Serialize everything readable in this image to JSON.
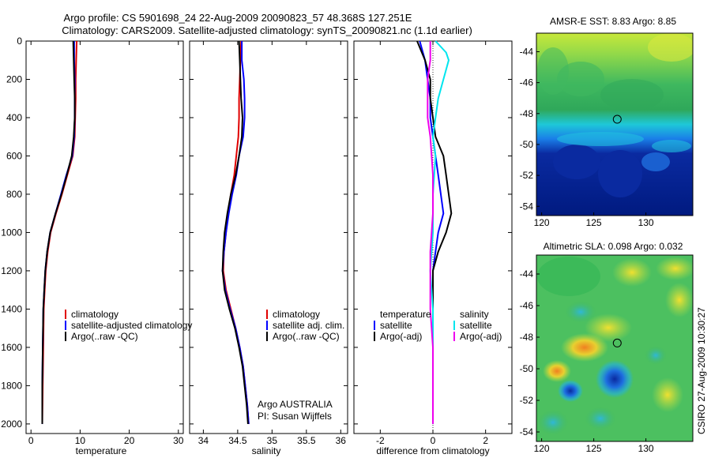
{
  "header": {
    "title_line1": "Argo profile: CS 5901698_24 22-Aug-2009 20090823_57 48.368S 127.251E",
    "title_line2": "Climatology: CARS2009. Satellite-adjusted climatology: synTS_20090821.nc (1.1d earlier)"
  },
  "credit": "CSIRO 27-Aug-2009 10:30:27",
  "colors": {
    "climatology": "#e00000",
    "satellite": "#0000ff",
    "argo": "#000000",
    "satellite_salinity": "#00e5ee",
    "argo_salinity": "#ee00ee",
    "map_frame": "#000000"
  },
  "chart_data": [
    {
      "type": "line",
      "xlabel": "temperature",
      "xlim": [
        -1,
        31
      ],
      "ylim": [
        2050,
        0
      ],
      "xticks": [
        0,
        10,
        20,
        30
      ],
      "yticks": [
        0,
        200,
        400,
        600,
        800,
        1000,
        1200,
        1400,
        1600,
        1800,
        2000
      ],
      "legend": [
        "climatology",
        "satellite-adjusted climatology",
        "Argo(..raw -QC)"
      ],
      "series": [
        {
          "name": "climatology",
          "color": "#e00000",
          "points": [
            [
              9.3,
              0
            ],
            [
              9.2,
              100
            ],
            [
              9.1,
              200
            ],
            [
              9.1,
              300
            ],
            [
              9.0,
              400
            ],
            [
              8.9,
              500
            ],
            [
              8.5,
              600
            ],
            [
              7.4,
              700
            ],
            [
              6.3,
              800
            ],
            [
              5.1,
              900
            ],
            [
              4.0,
              1000
            ],
            [
              3.4,
              1100
            ],
            [
              3.0,
              1200
            ],
            [
              2.8,
              1300
            ],
            [
              2.6,
              1400
            ],
            [
              2.5,
              1600
            ],
            [
              2.4,
              1800
            ],
            [
              2.3,
              2000
            ]
          ]
        },
        {
          "name": "satellite-adjusted climatology",
          "color": "#0000ff",
          "points": [
            [
              8.8,
              0
            ],
            [
              8.8,
              100
            ],
            [
              8.9,
              200
            ],
            [
              8.9,
              300
            ],
            [
              8.9,
              400
            ],
            [
              8.8,
              500
            ],
            [
              8.4,
              600
            ],
            [
              7.2,
              700
            ],
            [
              6.1,
              800
            ],
            [
              5.0,
              900
            ],
            [
              3.9,
              1000
            ],
            [
              3.3,
              1100
            ],
            [
              2.9,
              1200
            ],
            [
              2.7,
              1300
            ],
            [
              2.5,
              1400
            ],
            [
              2.4,
              1600
            ],
            [
              2.3,
              1800
            ],
            [
              2.3,
              2000
            ]
          ]
        },
        {
          "name": "Argo(..raw -QC)",
          "color": "#000000",
          "points": [
            [
              8.6,
              0
            ],
            [
              8.7,
              100
            ],
            [
              8.8,
              200
            ],
            [
              8.9,
              300
            ],
            [
              8.9,
              400
            ],
            [
              8.7,
              500
            ],
            [
              8.3,
              600
            ],
            [
              7.3,
              700
            ],
            [
              6.2,
              800
            ],
            [
              5.0,
              900
            ],
            [
              3.9,
              1000
            ],
            [
              3.3,
              1100
            ],
            [
              2.9,
              1200
            ],
            [
              2.7,
              1300
            ],
            [
              2.5,
              1400
            ],
            [
              2.4,
              1600
            ],
            [
              2.3,
              1800
            ],
            [
              2.3,
              2000
            ]
          ]
        }
      ]
    },
    {
      "type": "line",
      "xlabel": "salinity",
      "xlim": [
        33.8,
        36.1
      ],
      "ylim": [
        2050,
        0
      ],
      "xticks": [
        34,
        34.5,
        35,
        35.5,
        36
      ],
      "legend": [
        "climatology",
        "satellite adj. clim.",
        "Argo(..raw -QC)"
      ],
      "annotation": [
        "Argo AUSTRALIA",
        "PI: Susan Wijffels"
      ],
      "series": [
        {
          "name": "climatology",
          "color": "#e00000",
          "points": [
            [
              34.55,
              0
            ],
            [
              34.54,
              100
            ],
            [
              34.53,
              200
            ],
            [
              34.52,
              300
            ],
            [
              34.52,
              400
            ],
            [
              34.51,
              500
            ],
            [
              34.48,
              600
            ],
            [
              34.45,
              700
            ],
            [
              34.4,
              800
            ],
            [
              34.36,
              900
            ],
            [
              34.33,
              1000
            ],
            [
              34.3,
              1100
            ],
            [
              34.29,
              1200
            ],
            [
              34.33,
              1300
            ],
            [
              34.4,
              1400
            ],
            [
              34.47,
              1500
            ],
            [
              34.53,
              1600
            ],
            [
              34.58,
              1700
            ],
            [
              34.61,
              1800
            ],
            [
              34.64,
              1900
            ],
            [
              34.66,
              2000
            ]
          ]
        },
        {
          "name": "satellite adj. clim.",
          "color": "#0000ff",
          "points": [
            [
              34.56,
              0
            ],
            [
              34.56,
              100
            ],
            [
              34.59,
              200
            ],
            [
              34.6,
              300
            ],
            [
              34.6,
              400
            ],
            [
              34.58,
              500
            ],
            [
              34.52,
              600
            ],
            [
              34.48,
              700
            ],
            [
              34.42,
              800
            ],
            [
              34.37,
              900
            ],
            [
              34.33,
              1000
            ],
            [
              34.3,
              1100
            ],
            [
              34.28,
              1200
            ],
            [
              34.32,
              1300
            ],
            [
              34.39,
              1400
            ],
            [
              34.47,
              1500
            ],
            [
              34.53,
              1600
            ],
            [
              34.58,
              1700
            ],
            [
              34.61,
              1800
            ],
            [
              34.64,
              1900
            ],
            [
              34.66,
              2000
            ]
          ]
        },
        {
          "name": "Argo(..raw -QC)",
          "color": "#000000",
          "points": [
            [
              34.52,
              0
            ],
            [
              34.53,
              100
            ],
            [
              34.54,
              200
            ],
            [
              34.55,
              300
            ],
            [
              34.57,
              400
            ],
            [
              34.56,
              500
            ],
            [
              34.52,
              600
            ],
            [
              34.47,
              700
            ],
            [
              34.4,
              800
            ],
            [
              34.35,
              900
            ],
            [
              34.31,
              1000
            ],
            [
              34.29,
              1100
            ],
            [
              34.28,
              1200
            ],
            [
              34.31,
              1300
            ],
            [
              34.38,
              1400
            ],
            [
              34.46,
              1500
            ],
            [
              34.52,
              1600
            ],
            [
              34.57,
              1700
            ],
            [
              34.6,
              1800
            ],
            [
              34.63,
              1900
            ],
            [
              34.65,
              2000
            ]
          ]
        }
      ]
    },
    {
      "type": "line",
      "xlabel": "difference from climatology",
      "xlim": [
        -3,
        3
      ],
      "ylim": [
        2050,
        0
      ],
      "xticks": [
        -2,
        0,
        2
      ],
      "legend_temperature_title": "temperature",
      "legend_salinity_title": "salinity",
      "legend": [
        "satellite",
        "Argo(-adj)",
        "satellite",
        "Argo(-adj)"
      ],
      "series": [
        {
          "name": "satellite",
          "color": "#0000ff",
          "points": [
            [
              -0.5,
              0
            ],
            [
              -0.3,
              100
            ],
            [
              -0.2,
              200
            ],
            [
              -0.1,
              300
            ],
            [
              -0.1,
              400
            ],
            [
              0.0,
              500
            ],
            [
              0.1,
              600
            ],
            [
              0.2,
              700
            ],
            [
              0.3,
              800
            ],
            [
              0.4,
              900
            ],
            [
              0.2,
              1000
            ],
            [
              0.1,
              1100
            ],
            [
              0.0,
              1200
            ],
            [
              0.0,
              1400
            ],
            [
              0.0,
              1600
            ],
            [
              0.0,
              2000
            ]
          ]
        },
        {
          "name": "Argo(-adj)",
          "color": "#000000",
          "points": [
            [
              -0.6,
              0
            ],
            [
              -0.3,
              100
            ],
            [
              -0.1,
              200
            ],
            [
              -0.1,
              300
            ],
            [
              0.0,
              400
            ],
            [
              0.1,
              500
            ],
            [
              0.4,
              600
            ],
            [
              0.5,
              700
            ],
            [
              0.6,
              800
            ],
            [
              0.7,
              900
            ],
            [
              0.5,
              1000
            ],
            [
              0.2,
              1100
            ],
            [
              0.0,
              1200
            ],
            [
              0.0,
              1400
            ],
            [
              0.0,
              1600
            ],
            [
              0.0,
              2000
            ]
          ]
        },
        {
          "name": "satellite",
          "color": "#00e5ee",
          "points": [
            [
              0.1,
              0
            ],
            [
              0.5,
              60
            ],
            [
              0.6,
              100
            ],
            [
              0.4,
              200
            ],
            [
              0.2,
              300
            ],
            [
              0.1,
              400
            ],
            [
              0.0,
              500
            ],
            [
              0.1,
              600
            ],
            [
              0.0,
              800
            ],
            [
              0.0,
              1000
            ],
            [
              -0.1,
              1200
            ],
            [
              0.0,
              1400
            ],
            [
              0.0,
              1600
            ],
            [
              0.0,
              2000
            ]
          ]
        },
        {
          "name": "Argo(-adj)",
          "color": "#ee00ee",
          "points": [
            [
              -0.1,
              0
            ],
            [
              -0.1,
              100
            ],
            [
              -0.2,
              200
            ],
            [
              -0.2,
              300
            ],
            [
              -0.2,
              400
            ],
            [
              -0.1,
              500
            ],
            [
              0.0,
              700
            ],
            [
              0.0,
              900
            ],
            [
              -0.1,
              1100
            ],
            [
              -0.1,
              1200
            ],
            [
              -0.1,
              1400
            ],
            [
              0.0,
              1600
            ],
            [
              0.0,
              2000
            ]
          ]
        }
      ]
    },
    {
      "type": "heatmap",
      "title": "AMSR-E SST: 8.83 Argo: 8.85",
      "xlim": [
        119.5,
        134.5
      ],
      "ylim": [
        -54.6,
        -42.8
      ],
      "xticks": [
        120,
        125,
        130
      ],
      "yticks": [
        -44,
        -46,
        -48,
        -50,
        -52,
        -54
      ],
      "marker": {
        "lon": 127.25,
        "lat": -48.37
      }
    },
    {
      "type": "heatmap",
      "title": "Altimetric SLA: 0.098 Argo: 0.032",
      "xlim": [
        119.5,
        134.5
      ],
      "ylim": [
        -54.6,
        -42.8
      ],
      "xticks": [
        120,
        125,
        130
      ],
      "yticks": [
        -44,
        -46,
        -48,
        -50,
        -52,
        -54
      ],
      "marker": {
        "lon": 127.25,
        "lat": -48.37
      }
    }
  ]
}
